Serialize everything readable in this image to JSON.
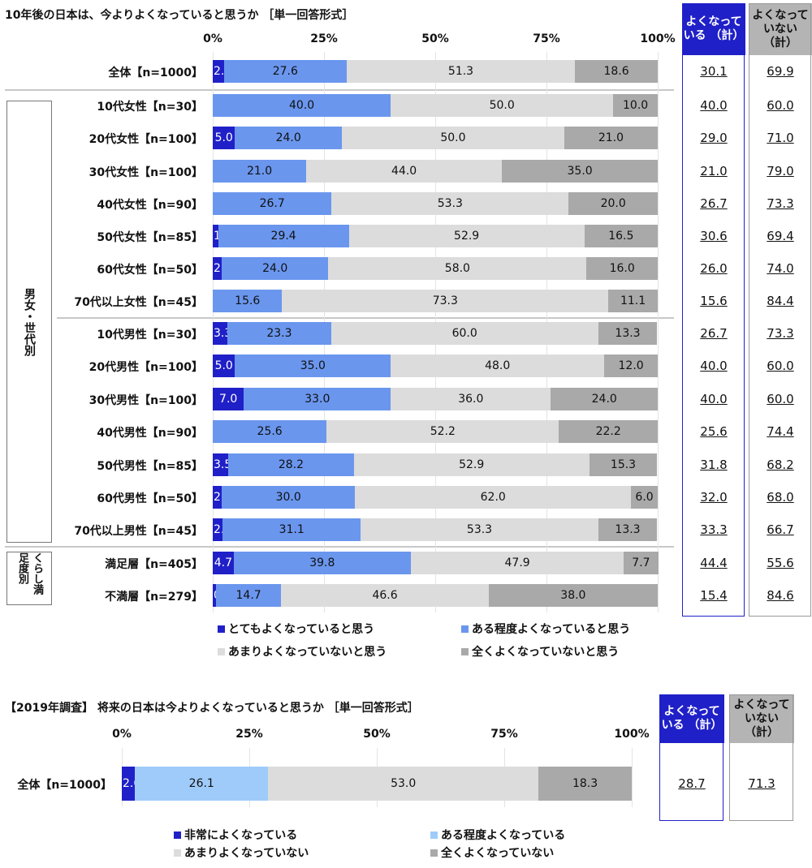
{
  "chart_data": [
    {
      "type": "bar",
      "orientation": "horizontal-stacked-100",
      "title": "10年後の日本は、今よりよくなっていると思うか ［単一回答形式］",
      "xlim": [
        0,
        100
      ],
      "ticks": [
        "0%",
        "25%",
        "50%",
        "75%",
        "100%"
      ],
      "grid": true,
      "legend_position": "bottom",
      "series": [
        {
          "name": "とてもよくなっていると思う",
          "color": "#2020c8"
        },
        {
          "name": "ある程度よくなっていると思う",
          "color": "#6a96ee"
        },
        {
          "name": "あまりよくなっていないと思う",
          "color": "#dcdcdc"
        },
        {
          "name": "全くよくなっていないと思う",
          "color": "#a9a9a9"
        }
      ],
      "summary_headers": {
        "good": "よくなって いる （計）",
        "bad": "よくなって いない （計）"
      },
      "summary_colors": {
        "good": "#2020c8",
        "bad": "#b4b4b4"
      },
      "groups": [
        {
          "label": "",
          "rows": [
            0
          ]
        },
        {
          "label": "男女・世代別",
          "rows": [
            1,
            2,
            3,
            4,
            5,
            6,
            7,
            8,
            9,
            10,
            11,
            12,
            13,
            14
          ]
        },
        {
          "label": "くらし満足度別",
          "rows": [
            15,
            16
          ]
        }
      ],
      "rows": [
        {
          "label": "全体【n=1000】",
          "values": [
            2.5,
            27.6,
            51.3,
            18.6
          ],
          "good": "30.1",
          "bad": "69.9"
        },
        {
          "label": "10代女性【n=30】",
          "values": [
            0,
            40.0,
            50.0,
            10.0
          ],
          "good": "40.0",
          "bad": "60.0"
        },
        {
          "label": "20代女性【n=100】",
          "values": [
            5.0,
            24.0,
            50.0,
            21.0
          ],
          "good": "29.0",
          "bad": "71.0"
        },
        {
          "label": "30代女性【n=100】",
          "values": [
            0,
            21.0,
            44.0,
            35.0
          ],
          "good": "21.0",
          "bad": "79.0"
        },
        {
          "label": "40代女性【n=90】",
          "values": [
            0,
            26.7,
            53.3,
            20.0
          ],
          "good": "26.7",
          "bad": "73.3"
        },
        {
          "label": "50代女性【n=85】",
          "values": [
            1.2,
            29.4,
            52.9,
            16.5
          ],
          "good": "30.6",
          "bad": "69.4"
        },
        {
          "label": "60代女性【n=50】",
          "values": [
            2.0,
            24.0,
            58.0,
            16.0
          ],
          "good": "26.0",
          "bad": "74.0"
        },
        {
          "label": "70代以上女性【n=45】",
          "values": [
            0,
            15.6,
            73.3,
            11.1
          ],
          "good": "15.6",
          "bad": "84.4"
        },
        {
          "label": "10代男性【n=30】",
          "values": [
            3.3,
            23.3,
            60.0,
            13.3
          ],
          "good": "26.7",
          "bad": "73.3"
        },
        {
          "label": "20代男性【n=100】",
          "values": [
            5.0,
            35.0,
            48.0,
            12.0
          ],
          "good": "40.0",
          "bad": "60.0"
        },
        {
          "label": "30代男性【n=100】",
          "values": [
            7.0,
            33.0,
            36.0,
            24.0
          ],
          "good": "40.0",
          "bad": "60.0"
        },
        {
          "label": "40代男性【n=90】",
          "values": [
            0,
            25.6,
            52.2,
            22.2
          ],
          "good": "25.6",
          "bad": "74.4"
        },
        {
          "label": "50代男性【n=85】",
          "values": [
            3.5,
            28.2,
            52.9,
            15.3
          ],
          "good": "31.8",
          "bad": "68.2"
        },
        {
          "label": "60代男性【n=50】",
          "values": [
            2.0,
            30.0,
            62.0,
            6.0
          ],
          "good": "32.0",
          "bad": "68.0"
        },
        {
          "label": "70代以上男性【n=45】",
          "values": [
            2.2,
            31.1,
            53.3,
            13.3
          ],
          "good": "33.3",
          "bad": "66.7"
        },
        {
          "label": "満足層【n=405】",
          "values": [
            4.7,
            39.8,
            47.9,
            7.7
          ],
          "good": "44.4",
          "bad": "55.6"
        },
        {
          "label": "不満層【n=279】",
          "values": [
            0.7,
            14.7,
            46.6,
            38.0
          ],
          "good": "15.4",
          "bad": "84.6"
        }
      ]
    },
    {
      "type": "bar",
      "orientation": "horizontal-stacked-100",
      "title": "【2019年調査】 将来の日本は今よりよくなっていると思うか ［単一回答形式］",
      "xlim": [
        0,
        100
      ],
      "ticks": [
        "0%",
        "25%",
        "50%",
        "75%",
        "100%"
      ],
      "grid": true,
      "legend_position": "bottom",
      "series": [
        {
          "name": "非常によくなっている",
          "color": "#2020c8"
        },
        {
          "name": "ある程度よくなっている",
          "color": "#9fcbfa"
        },
        {
          "name": "あまりよくなっていない",
          "color": "#dcdcdc"
        },
        {
          "name": "全くよくなっていない",
          "color": "#a9a9a9"
        }
      ],
      "summary_headers": {
        "good": "よくなって いる （計）",
        "bad": "よくなって いない （計）"
      },
      "summary_colors": {
        "good": "#2020c8",
        "bad": "#b4b4b4"
      },
      "rows": [
        {
          "label": "全体【n=1000】",
          "values": [
            2.6,
            26.1,
            53.0,
            18.3
          ],
          "good": "28.7",
          "bad": "71.3"
        }
      ]
    }
  ]
}
